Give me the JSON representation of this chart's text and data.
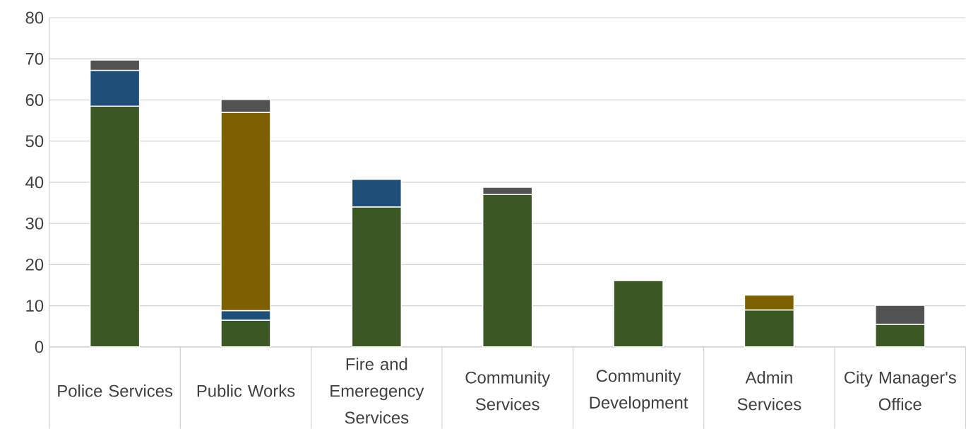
{
  "chart_data": {
    "type": "bar",
    "stacked": true,
    "categories": [
      "Police Services",
      "Public Works",
      "Fire and Emeregency Services",
      "Community Services",
      "Community Development",
      "Admin Services",
      "City Manager's Office"
    ],
    "series": [
      {
        "color": "#3a5724",
        "values": [
          58.5,
          6.5,
          34.0,
          37.0,
          16.1,
          9.0,
          5.5
        ]
      },
      {
        "color": "#1f4e79",
        "values": [
          8.7,
          2.3,
          6.7,
          null,
          null,
          null,
          null
        ]
      },
      {
        "color": "#7f6000",
        "values": [
          null,
          48.2,
          null,
          null,
          null,
          3.6,
          null
        ]
      },
      {
        "color": "#525252",
        "values": [
          2.5,
          3.1,
          null,
          1.8,
          null,
          null,
          4.6
        ]
      }
    ],
    "ylim": [
      0,
      80
    ],
    "yticks": [
      0,
      10,
      20,
      30,
      40,
      50,
      60,
      70,
      80
    ],
    "grid": "y"
  }
}
